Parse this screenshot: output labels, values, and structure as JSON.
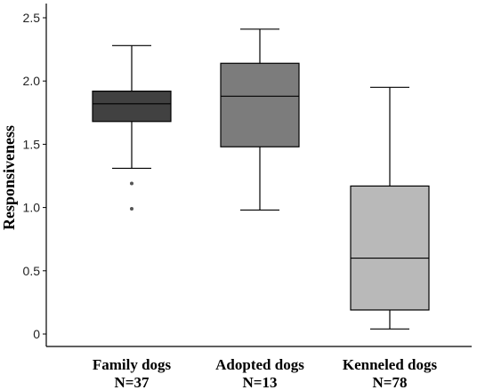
{
  "chart_data": {
    "type": "box",
    "title": "",
    "xlabel": "",
    "ylabel": "Responsiveness",
    "ylim": [
      -0.05,
      2.6
    ],
    "yticks": [
      "0",
      "0.5",
      "1.0",
      "1.5",
      "2.0",
      "2.5"
    ],
    "ytick_values": [
      0,
      0.5,
      1.0,
      1.5,
      2.0,
      2.5
    ],
    "grid": false,
    "categories": [
      {
        "name": "Family dogs",
        "n_label": "N=37"
      },
      {
        "name": "Adopted dogs",
        "n_label": "N=13"
      },
      {
        "name": "Kenneled dogs",
        "n_label": "N=78"
      }
    ],
    "boxes": [
      {
        "category": "Family dogs",
        "whisker_low": 1.31,
        "q1": 1.68,
        "median": 1.82,
        "q3": 1.92,
        "whisker_high": 2.28,
        "outliers": [
          1.19,
          0.99
        ],
        "color": "#414141"
      },
      {
        "category": "Adopted dogs",
        "whisker_low": 0.98,
        "q1": 1.48,
        "median": 1.88,
        "q3": 2.14,
        "whisker_high": 2.41,
        "outliers": [],
        "color": "#7c7c7c"
      },
      {
        "category": "Kenneled dogs",
        "whisker_low": 0.04,
        "q1": 0.19,
        "median": 0.6,
        "q3": 1.17,
        "whisker_high": 1.95,
        "outliers": [],
        "color": "#b9b9b9"
      }
    ]
  }
}
